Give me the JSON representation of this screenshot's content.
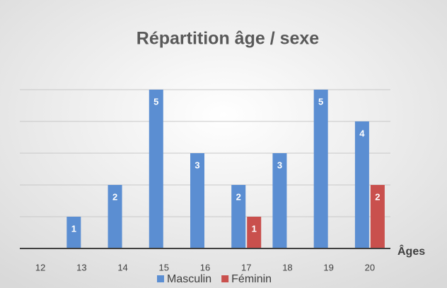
{
  "chart_data": {
    "type": "bar",
    "title": "Répartition âge / sexe",
    "x_label": "Âges",
    "categories": [
      "12",
      "13",
      "14",
      "15",
      "16",
      "17",
      "18",
      "19",
      "20"
    ],
    "series": [
      {
        "name": "Masculin",
        "color": "#5b8ed2",
        "values": [
          null,
          1,
          2,
          5,
          3,
          2,
          3,
          5,
          4
        ]
      },
      {
        "name": "Féminin",
        "color": "#c9504d",
        "values": [
          null,
          null,
          null,
          null,
          null,
          1,
          null,
          null,
          2
        ]
      }
    ],
    "ylim": [
      0,
      5
    ],
    "yticks": [
      0,
      1,
      2,
      3,
      4,
      5
    ],
    "grid": true,
    "legend": "bottom"
  }
}
